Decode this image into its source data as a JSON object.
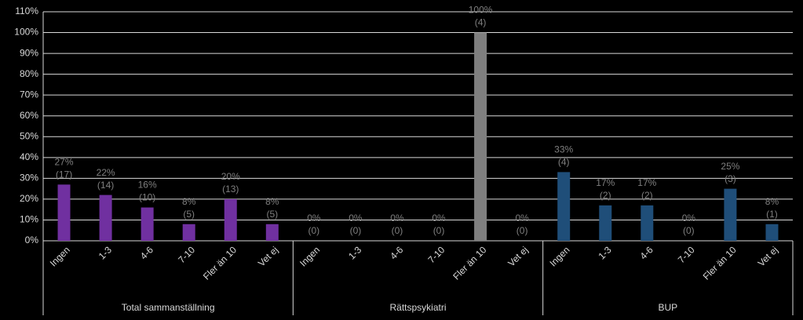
{
  "chart_data": {
    "type": "bar",
    "ylim": [
      0,
      110
    ],
    "yticks": [
      {
        "value": 0,
        "label": "0%"
      },
      {
        "value": 10,
        "label": "10%"
      },
      {
        "value": 20,
        "label": "20%"
      },
      {
        "value": 30,
        "label": "30%"
      },
      {
        "value": 40,
        "label": "40%"
      },
      {
        "value": 50,
        "label": "50%"
      },
      {
        "value": 60,
        "label": "60%"
      },
      {
        "value": 70,
        "label": "70%"
      },
      {
        "value": 80,
        "label": "80%"
      },
      {
        "value": 90,
        "label": "90%"
      },
      {
        "value": 100,
        "label": "100%"
      },
      {
        "value": 110,
        "label": "110%"
      }
    ],
    "grid": true,
    "groups": [
      {
        "name": "Total sammanställning",
        "color": "#7030a0",
        "categories": [
          "Ingen",
          "1-3",
          "4-6",
          "7-10",
          "Fler än 10",
          "Vet ej"
        ],
        "values": [
          27,
          22,
          16,
          8,
          20,
          8
        ],
        "value_labels": [
          "27%",
          "22%",
          "16%",
          "8%",
          "20%",
          "8%"
        ],
        "count_labels": [
          "(17)",
          "(14)",
          "(10)",
          "(5)",
          "(13)",
          "(5)"
        ]
      },
      {
        "name": "Rättspsykiatri",
        "color": "#7f7f7f",
        "categories": [
          "Ingen",
          "1-3",
          "4-6",
          "7-10",
          "Fler än 10",
          "Vet ej"
        ],
        "values": [
          0,
          0,
          0,
          0,
          100,
          0
        ],
        "value_labels": [
          "0%",
          "0%",
          "0%",
          "0%",
          "100%",
          "0%"
        ],
        "count_labels": [
          "(0)",
          "(0)",
          "(0)",
          "(0)",
          "(4)",
          "(0)"
        ]
      },
      {
        "name": "BUP",
        "color": "#1f4e79",
        "categories": [
          "Ingen",
          "1-3",
          "4-6",
          "7-10",
          "Fler än 10",
          "Vet ej"
        ],
        "values": [
          33,
          17,
          17,
          0,
          25,
          8
        ],
        "value_labels": [
          "33%",
          "17%",
          "17%",
          "0%",
          "25%",
          "8%"
        ],
        "count_labels": [
          "(4)",
          "(2)",
          "(2)",
          "(0)",
          "(3)",
          "(1)"
        ]
      }
    ]
  }
}
